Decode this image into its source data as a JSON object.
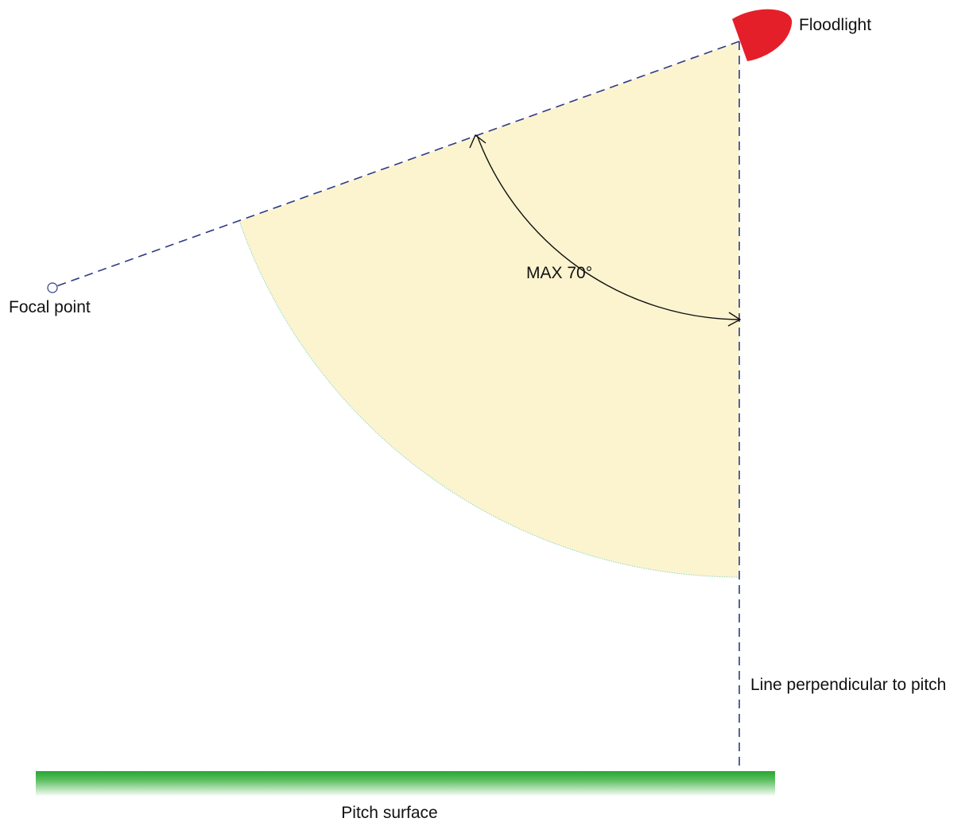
{
  "labels": {
    "floodlight": "Floodlight",
    "focal_point": "Focal point",
    "angle": "MAX 70°",
    "perpendicular": "Line perpendicular to pitch",
    "pitch": "Pitch surface"
  },
  "angle_degrees": 70,
  "colors": {
    "sector_fill": "#fbf4cf",
    "sector_edge": "#8fd7c2",
    "dashed_line": "#2e3a86",
    "floodlight": "#e41f2a",
    "pitch_top": "#27a632",
    "pitch_bottom": "#ffffff",
    "arrow": "#111111",
    "text": "#111111"
  },
  "icons": {
    "floodlight": "floodlight-icon",
    "focal_point": "circle-marker-icon"
  }
}
